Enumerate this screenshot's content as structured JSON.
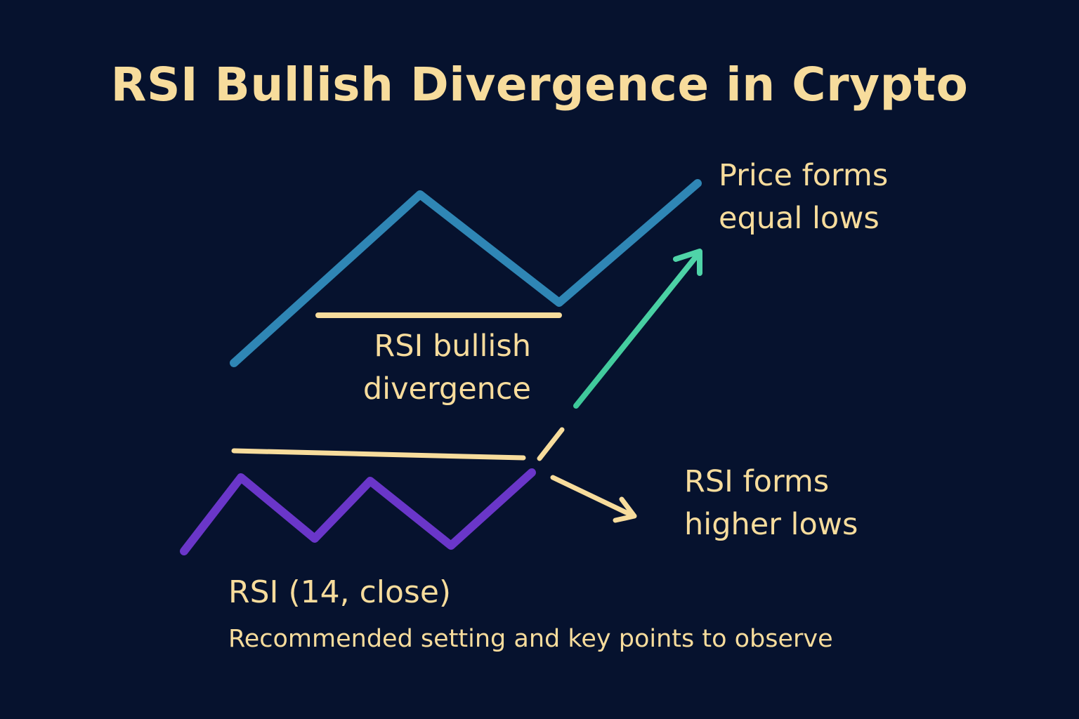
{
  "title": "RSI Bullish Divergence in Crypto",
  "labels": {
    "price_line1": "Price forms",
    "price_line2": "equal lows",
    "divergence_line1": "RSI bullish",
    "divergence_line2": "divergence",
    "rsi_line1": "RSI forms",
    "rsi_line2": "higher lows"
  },
  "setting": "RSI (14, close)",
  "note": "Recommended setting and key points to observe",
  "colors": {
    "background": "#06122e",
    "text": "#f7dc9c",
    "price_line": "#2f86b5",
    "rsi_line": "#6a36c9",
    "level_line": "#f7dc9c",
    "arrow_up": "#3ec89a",
    "arrow_right": "#f7dc9c"
  }
}
